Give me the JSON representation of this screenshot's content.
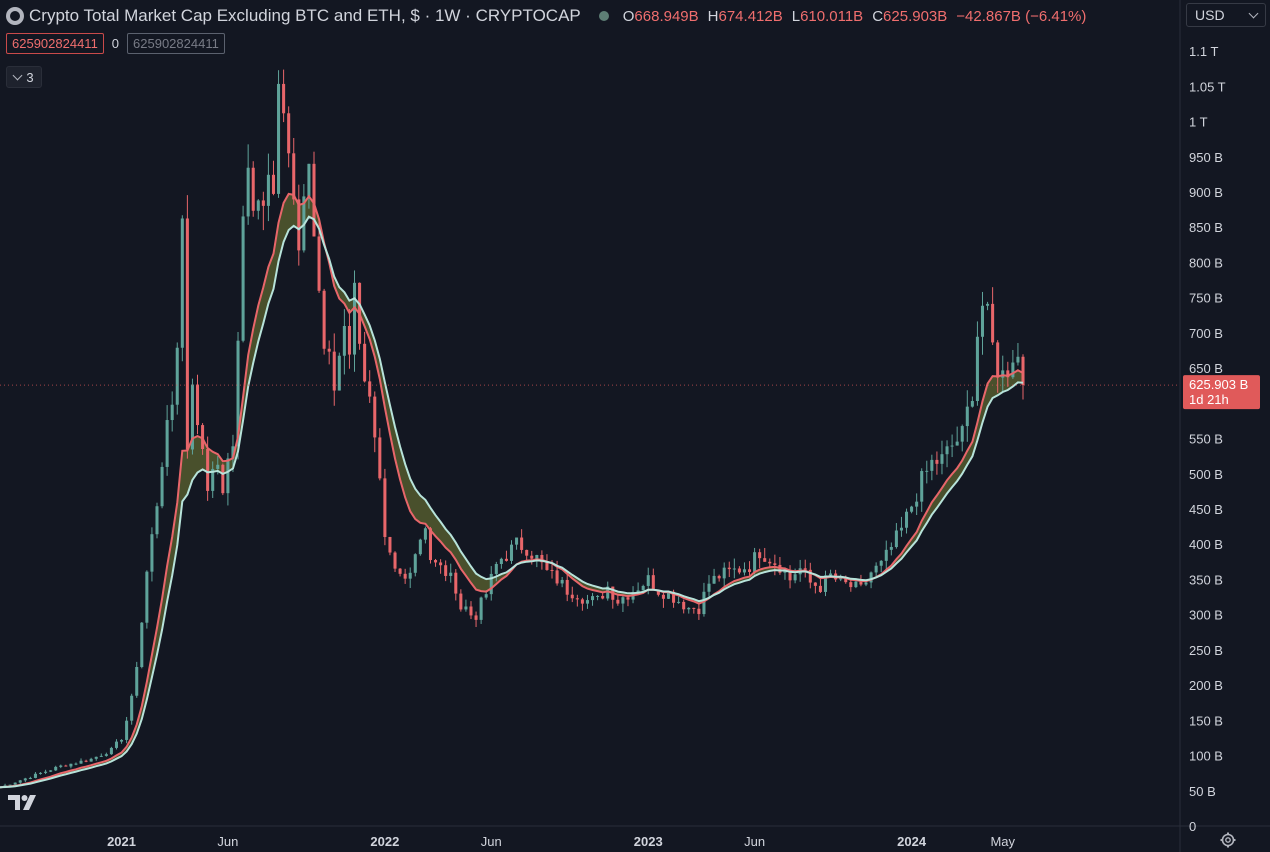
{
  "header": {
    "title": "Crypto Total Market Cap Excluding BTC and ETH, $ · 1W · CRYPTOCAP",
    "open_label": "O",
    "open_value": "668.949B",
    "high_label": "H",
    "high_value": "674.412B",
    "low_label": "L",
    "low_value": "610.011B",
    "close_label": "C",
    "close_value": "625.903B",
    "change": "−42.867B (−6.41%)"
  },
  "indicator_values": {
    "ma_fast": "625902824411",
    "ma_sep": "0",
    "ma_slow": "625902824411"
  },
  "collapse_count": "3",
  "currency": "USD",
  "colors": {
    "up": "#5fa39a",
    "down": "#e8666a",
    "ma_fast": "#e8666a",
    "ma_slow": "#b7e3da",
    "fill": "#545a2e",
    "price_label_bg": "#e05a5a"
  },
  "chart_data": {
    "type": "candlestick",
    "y_axis_ticks": [
      "0",
      "50 B",
      "100 B",
      "150 B",
      "200 B",
      "250 B",
      "300 B",
      "350 B",
      "400 B",
      "450 B",
      "500 B",
      "550 B",
      "600 B",
      "650 B",
      "700 B",
      "750 B",
      "800 B",
      "850 B",
      "900 B",
      "950 B",
      "1 T",
      "1.05 T",
      "1.1 T"
    ],
    "y_axis_values": [
      0,
      50,
      100,
      150,
      200,
      250,
      300,
      350,
      400,
      450,
      500,
      550,
      600,
      650,
      700,
      750,
      800,
      850,
      900,
      950,
      1000,
      1050,
      1100
    ],
    "ylim": [
      0,
      1130
    ],
    "x_axis_labels": [
      {
        "label": "2021",
        "week": 52
      },
      {
        "label": "Jun",
        "week": 73
      },
      {
        "label": "2022",
        "week": 104
      },
      {
        "label": "Jun",
        "week": 125
      },
      {
        "label": "2023",
        "week": 156
      },
      {
        "label": "Jun",
        "week": 177
      },
      {
        "label": "2024",
        "week": 208
      },
      {
        "label": "May",
        "week": 226
      }
    ],
    "x_range_weeks": [
      28,
      261
    ],
    "last_week": 230,
    "current_price": {
      "value": 625.903,
      "label": "625.903 B",
      "countdown": "1d 21h"
    },
    "anchors": [
      [
        28,
        55
      ],
      [
        34,
        70
      ],
      [
        40,
        85
      ],
      [
        46,
        95
      ],
      [
        50,
        108
      ],
      [
        52,
        125
      ],
      [
        53,
        150
      ],
      [
        54,
        180
      ],
      [
        55,
        230
      ],
      [
        56,
        290
      ],
      [
        57,
        360
      ],
      [
        58,
        410
      ],
      [
        59,
        460
      ],
      [
        60,
        520
      ],
      [
        61,
        560
      ],
      [
        62,
        600
      ],
      [
        63,
        690
      ],
      [
        64,
        860
      ],
      [
        65,
        540
      ],
      [
        66,
        640
      ],
      [
        67,
        560
      ],
      [
        68,
        540
      ],
      [
        69,
        480
      ],
      [
        70,
        520
      ],
      [
        72,
        480
      ],
      [
        74,
        540
      ],
      [
        75,
        700
      ],
      [
        76,
        860
      ],
      [
        77,
        940
      ],
      [
        78,
        860
      ],
      [
        79,
        880
      ],
      [
        80,
        900
      ],
      [
        81,
        940
      ],
      [
        82,
        900
      ],
      [
        83,
        1080
      ],
      [
        84,
        1040
      ],
      [
        86,
        880
      ],
      [
        87,
        810
      ],
      [
        88,
        870
      ],
      [
        89,
        950
      ],
      [
        90,
        840
      ],
      [
        91,
        760
      ],
      [
        92,
        680
      ],
      [
        93,
        660
      ],
      [
        94,
        620
      ],
      [
        96,
        720
      ],
      [
        97,
        680
      ],
      [
        98,
        760
      ],
      [
        100,
        640
      ],
      [
        101,
        600
      ],
      [
        102,
        540
      ],
      [
        103,
        480
      ],
      [
        104,
        400
      ],
      [
        106,
        360
      ],
      [
        108,
        350
      ],
      [
        110,
        390
      ],
      [
        112,
        430
      ],
      [
        113,
        380
      ],
      [
        114,
        370
      ],
      [
        116,
        360
      ],
      [
        118,
        340
      ],
      [
        119,
        310
      ],
      [
        120,
        310
      ],
      [
        121,
        300
      ],
      [
        122,
        300
      ],
      [
        124,
        330
      ],
      [
        126,
        370
      ],
      [
        127,
        380
      ],
      [
        128,
        385
      ],
      [
        130,
        400
      ],
      [
        132,
        395
      ],
      [
        134,
        380
      ],
      [
        136,
        360
      ],
      [
        138,
        350
      ],
      [
        140,
        335
      ],
      [
        142,
        330
      ],
      [
        144,
        320
      ],
      [
        146,
        320
      ],
      [
        148,
        340
      ],
      [
        150,
        320
      ],
      [
        152,
        330
      ],
      [
        154,
        340
      ],
      [
        156,
        350
      ],
      [
        158,
        335
      ],
      [
        160,
        330
      ],
      [
        162,
        320
      ],
      [
        164,
        310
      ],
      [
        166,
        310
      ],
      [
        168,
        345
      ],
      [
        170,
        355
      ],
      [
        172,
        360
      ],
      [
        174,
        365
      ],
      [
        176,
        370
      ],
      [
        178,
        390
      ],
      [
        180,
        380
      ],
      [
        182,
        370
      ],
      [
        184,
        350
      ],
      [
        185,
        360
      ],
      [
        186,
        365
      ],
      [
        188,
        345
      ],
      [
        190,
        340
      ],
      [
        192,
        355
      ],
      [
        194,
        345
      ],
      [
        196,
        340
      ],
      [
        198,
        335
      ],
      [
        200,
        360
      ],
      [
        202,
        370
      ],
      [
        204,
        395
      ],
      [
        206,
        420
      ],
      [
        208,
        455
      ],
      [
        210,
        490
      ],
      [
        212,
        515
      ],
      [
        214,
        520
      ],
      [
        216,
        540
      ],
      [
        218,
        555
      ],
      [
        220,
        620
      ],
      [
        221,
        700
      ],
      [
        222,
        740
      ],
      [
        223,
        720
      ],
      [
        224,
        680
      ],
      [
        225,
        650
      ],
      [
        226,
        640
      ],
      [
        227,
        650
      ],
      [
        228,
        670
      ],
      [
        229,
        665
      ],
      [
        230,
        626
      ]
    ]
  }
}
